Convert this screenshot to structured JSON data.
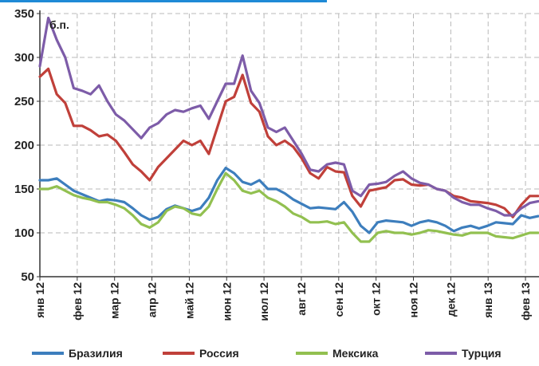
{
  "chart_data": {
    "type": "line",
    "unit_label": "б.п.",
    "y_ticks": [
      50,
      100,
      150,
      200,
      250,
      300,
      350
    ],
    "ylim": [
      50,
      350
    ],
    "grid": true,
    "legend_position": "bottom",
    "x_ticks": [
      "янв 12",
      "фев 12",
      "мар 12",
      "апр 12",
      "май 12",
      "июн 12",
      "июл 12",
      "авг 12",
      "сен 12",
      "окт 12",
      "ноя 12",
      "дек 12",
      "янв 13",
      "фев 13"
    ],
    "series": [
      {
        "name": "Бразилия",
        "color": "#3d7ebd",
        "values": [
          160,
          160,
          162,
          155,
          148,
          144,
          140,
          136,
          138,
          137,
          135,
          128,
          120,
          115,
          118,
          127,
          131,
          128,
          125,
          128,
          140,
          160,
          174,
          168,
          158,
          155,
          160,
          150,
          150,
          145,
          138,
          133,
          128,
          129,
          128,
          127,
          135,
          124,
          108,
          100,
          112,
          114,
          113,
          112,
          108,
          112,
          114,
          112,
          108,
          102,
          106,
          108,
          105,
          108,
          112,
          111,
          110,
          120,
          117,
          119
        ]
      },
      {
        "name": "Россия",
        "color": "#c0403a",
        "values": [
          278,
          287,
          258,
          248,
          222,
          222,
          217,
          210,
          212,
          205,
          192,
          178,
          170,
          160,
          175,
          185,
          195,
          205,
          200,
          205,
          190,
          220,
          250,
          255,
          280,
          248,
          238,
          210,
          200,
          205,
          198,
          185,
          168,
          162,
          175,
          170,
          169,
          142,
          130,
          148,
          150,
          152,
          160,
          161,
          155,
          154,
          155,
          150,
          148,
          142,
          140,
          136,
          135,
          134,
          132,
          128,
          118,
          132,
          142,
          142
        ]
      },
      {
        "name": "Мексика",
        "color": "#92c050",
        "values": [
          150,
          150,
          153,
          148,
          143,
          140,
          138,
          135,
          135,
          132,
          128,
          120,
          110,
          106,
          112,
          125,
          130,
          128,
          122,
          120,
          130,
          150,
          168,
          160,
          148,
          145,
          148,
          140,
          136,
          130,
          122,
          118,
          112,
          112,
          113,
          110,
          112,
          100,
          90,
          90,
          100,
          102,
          100,
          100,
          98,
          100,
          103,
          102,
          100,
          98,
          97,
          100,
          100,
          100,
          96,
          95,
          94,
          97,
          100,
          100
        ]
      },
      {
        "name": "Турция",
        "color": "#7d5ca8",
        "values": [
          290,
          345,
          320,
          300,
          265,
          262,
          258,
          268,
          250,
          235,
          228,
          218,
          208,
          220,
          225,
          235,
          240,
          238,
          242,
          245,
          230,
          250,
          270,
          270,
          302,
          262,
          248,
          220,
          215,
          220,
          205,
          190,
          172,
          170,
          178,
          180,
          178,
          148,
          142,
          155,
          156,
          158,
          165,
          170,
          162,
          157,
          155,
          150,
          148,
          140,
          135,
          132,
          132,
          128,
          125,
          120,
          120,
          128,
          134,
          136
        ]
      }
    ]
  }
}
